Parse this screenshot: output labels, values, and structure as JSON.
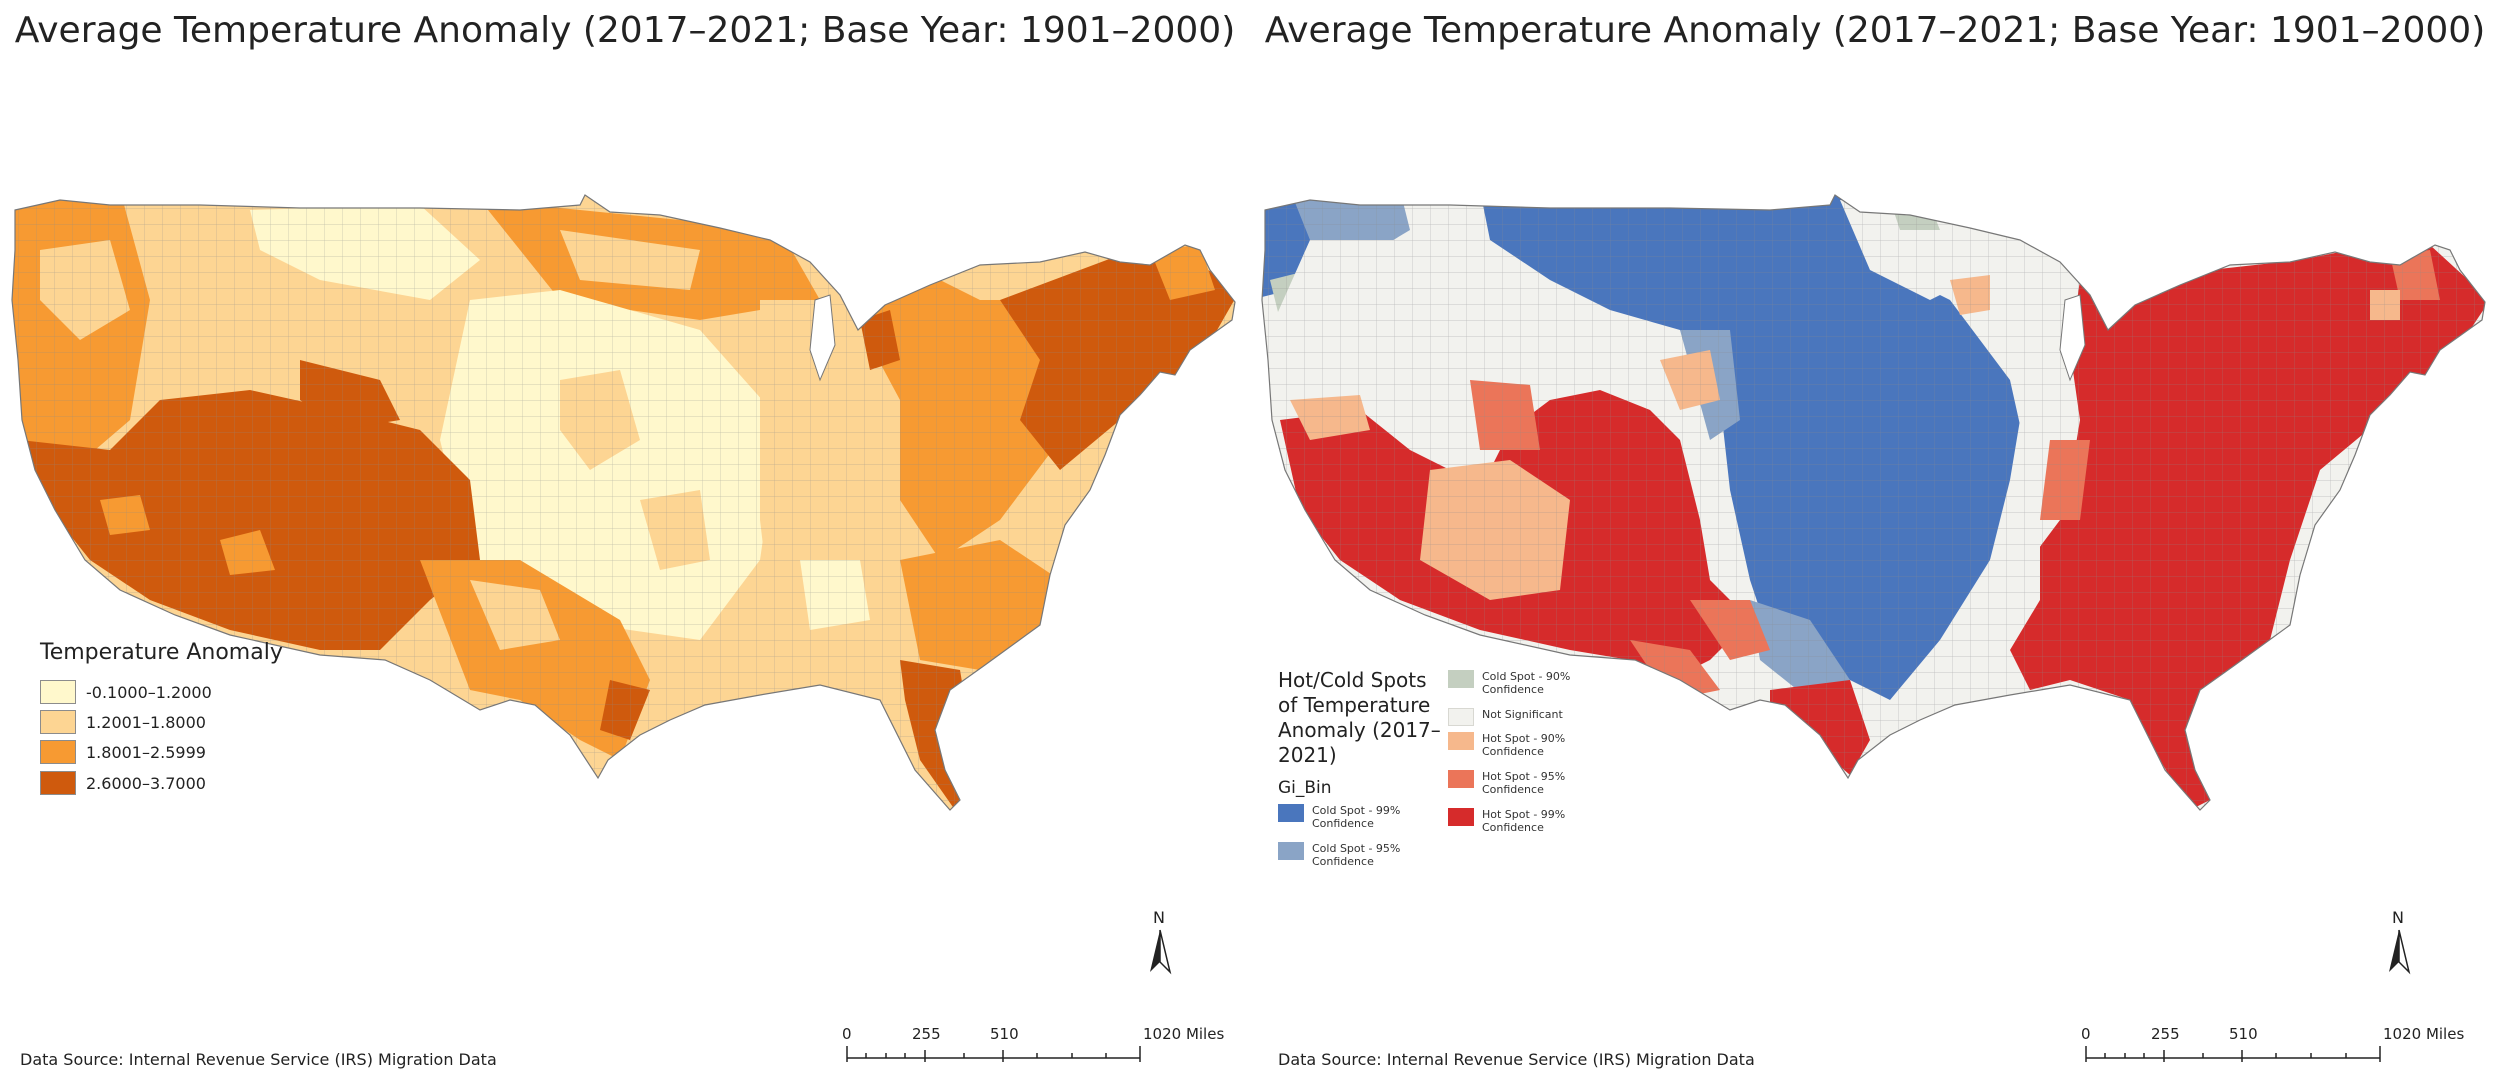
{
  "left_map": {
    "title": "Average Temperature Anomaly (2017–2021; Base Year: 1901–2000)",
    "legend": {
      "title": "Temperature Anomaly",
      "items": [
        {
          "label": "-0.1000–1.2000",
          "color": "#fff8cc"
        },
        {
          "label": "1.2001–1.8000",
          "color": "#fdd593"
        },
        {
          "label": "1.8001–2.5999",
          "color": "#f79a32"
        },
        {
          "label": "2.6000–3.7000",
          "color": "#cf5a0d"
        }
      ]
    },
    "source": "Data Source: Internal Revenue Service (IRS) Migration Data",
    "north": "N",
    "scale": {
      "ticks": [
        "0",
        "255",
        "510",
        "1020 Miles"
      ]
    }
  },
  "right_map": {
    "title": "Average Temperature Anomaly (2017–2021; Base Year: 1901–2000)",
    "legend": {
      "title": "Hot/Cold Spots of Temperature Anomaly (2017–2021)",
      "subtitle": "Gi_Bin",
      "items": [
        {
          "label": "Cold Spot - 99% Confidence",
          "color": "#4a76bd"
        },
        {
          "label": "Cold Spot - 95% Confidence",
          "color": "#8aa4c6"
        },
        {
          "label": "Cold Spot - 90% Confidence",
          "color": "#c4cfc0"
        },
        {
          "label": "Not Significant",
          "color": "#f2f2ee"
        },
        {
          "label": "Hot Spot - 90% Confidence",
          "color": "#f6b88c"
        },
        {
          "label": "Hot Spot - 95% Confidence",
          "color": "#eb7559"
        },
        {
          "label": "Hot Spot - 99% Confidence",
          "color": "#d62b2b"
        }
      ]
    },
    "source": "Data Source: Internal Revenue Service (IRS) Migration Data",
    "north": "N",
    "scale": {
      "ticks": [
        "0",
        "255",
        "510",
        "1020 Miles"
      ]
    }
  }
}
